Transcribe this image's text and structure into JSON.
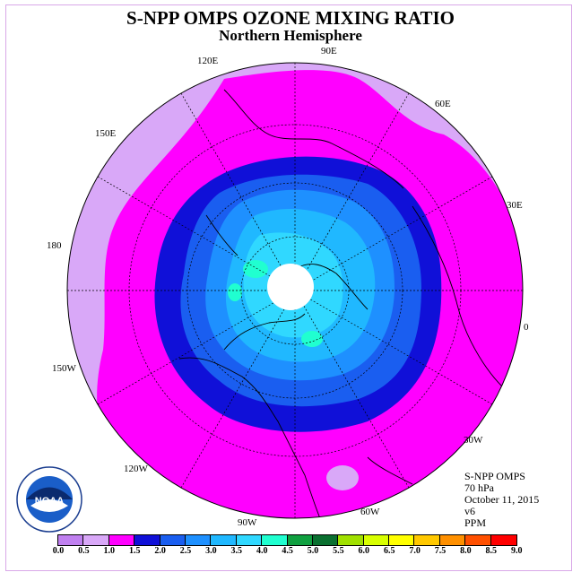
{
  "title": "S-NPP OMPS OZONE MIXING RATIO",
  "subtitle": "Northern Hemisphere",
  "longitude_labels": [
    "90E",
    "60E",
    "30E",
    "0",
    "30W",
    "60W",
    "90W",
    "120W",
    "150W",
    "180",
    "150E",
    "120E"
  ],
  "info": {
    "instrument": "S-NPP OMPS",
    "level": "70 hPa",
    "date": "October 11, 2015",
    "version": "v6",
    "units": "PPM"
  },
  "colorbar": {
    "ticks": [
      "0.0",
      "0.5",
      "1.0",
      "1.5",
      "2.0",
      "2.5",
      "3.0",
      "3.5",
      "4.0",
      "4.5",
      "5.0",
      "5.5",
      "6.0",
      "6.5",
      "7.0",
      "7.5",
      "8.0",
      "8.5",
      "9.0"
    ],
    "colors": [
      "#c080f0",
      "#d9a8f8",
      "#ff00ff",
      "#1010d8",
      "#1a5ef0",
      "#1e90ff",
      "#20b8ff",
      "#30d8ff",
      "#20ffd0",
      "#10a040",
      "#0a7030",
      "#a0e000",
      "#d8ff00",
      "#ffff00",
      "#ffc800",
      "#ff9000",
      "#ff5000",
      "#ff0000",
      "#8b4513"
    ]
  },
  "logo": {
    "name": "NOAA",
    "ring_text": "NATIONAL OCEANIC AND ATMOSPHERIC ADMINISTRATION · U.S. DEPARTMENT OF COMMERCE"
  }
}
